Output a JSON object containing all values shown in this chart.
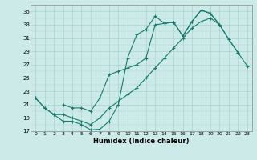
{
  "xlabel": "Humidex (Indice chaleur)",
  "bg_color": "#cceae8",
  "grid_color": "#aad4d0",
  "line_color": "#1a7a6e",
  "xlim": [
    -0.5,
    23.5
  ],
  "ylim": [
    17,
    36
  ],
  "yticks": [
    17,
    19,
    21,
    23,
    25,
    27,
    29,
    31,
    33,
    35
  ],
  "xticks": [
    0,
    1,
    2,
    3,
    4,
    5,
    6,
    7,
    8,
    9,
    10,
    11,
    12,
    13,
    14,
    15,
    16,
    17,
    18,
    19,
    20,
    21,
    22,
    23
  ],
  "line1_x": [
    0,
    1,
    2,
    3,
    4,
    5,
    6,
    7,
    8,
    9,
    10,
    11,
    12,
    13,
    14,
    15,
    16,
    17,
    18,
    19,
    20,
    21,
    22
  ],
  "line1_y": [
    22,
    20.5,
    19.5,
    18.5,
    18.5,
    18.0,
    17.2,
    17.3,
    18.5,
    21.0,
    28.0,
    31.5,
    32.3,
    34.3,
    33.2,
    33.4,
    31.3,
    33.5,
    35.2,
    34.7,
    33.0,
    30.8,
    28.8
  ],
  "line2_x": [
    3,
    4,
    5,
    6,
    7,
    8,
    9,
    10,
    11,
    12,
    13,
    14,
    15,
    16,
    17,
    18,
    19,
    20
  ],
  "line2_y": [
    21.0,
    20.5,
    20.5,
    20.0,
    22.0,
    25.5,
    26.0,
    26.5,
    27.0,
    28.0,
    33.0,
    33.2,
    33.4,
    31.3,
    33.5,
    35.2,
    34.7,
    33.0
  ],
  "line3_x": [
    0,
    1,
    2,
    3,
    4,
    5,
    6,
    7,
    8,
    9,
    10,
    11,
    12,
    13,
    14,
    15,
    16,
    17,
    18,
    19,
    20,
    21,
    22,
    23
  ],
  "line3_y": [
    22,
    20.5,
    19.5,
    19.5,
    19.0,
    18.5,
    18.0,
    19.0,
    20.5,
    21.5,
    22.5,
    23.5,
    25.0,
    26.5,
    28.0,
    29.5,
    31.0,
    32.5,
    33.5,
    34.0,
    33.0,
    30.8,
    28.8,
    26.8
  ]
}
